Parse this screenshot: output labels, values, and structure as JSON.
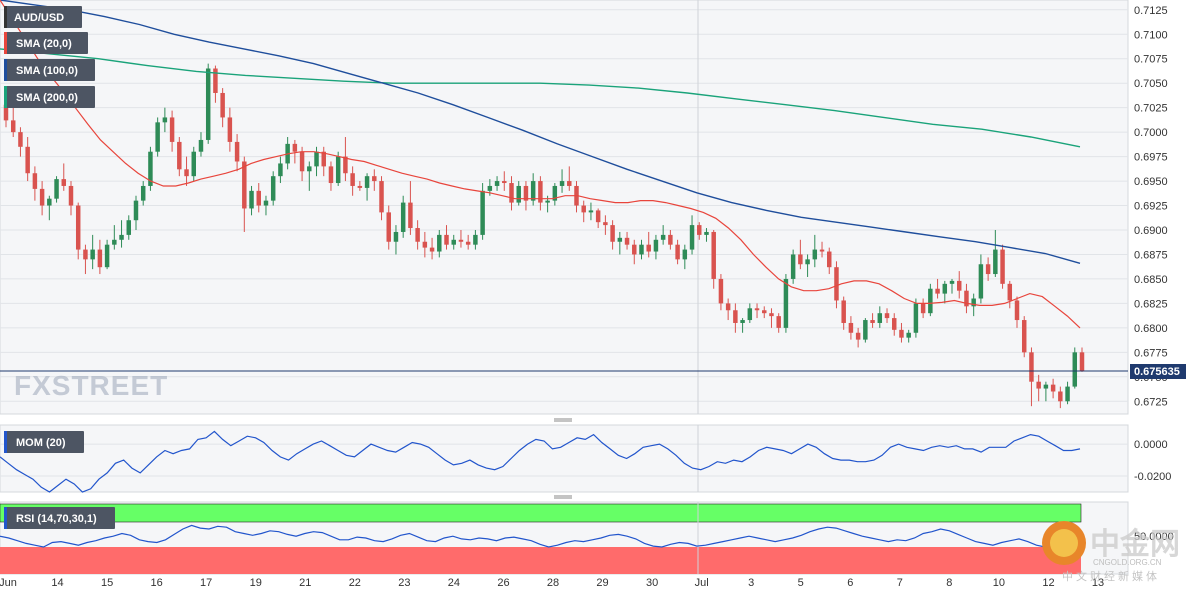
{
  "symbol": "AUD/USD",
  "indicators": {
    "sma20": "SMA (20,0)",
    "sma100": "SMA (100,0)",
    "sma200": "SMA (200,0)",
    "mom": "MOM (20)",
    "rsi": "RSI (14,70,30,1)"
  },
  "watermark": "FXSTREET",
  "logo": {
    "mark": "中金网",
    "domain": "CNGOLD.ORG.CN",
    "tagline": "中文财经新媒体"
  },
  "last_price": "0.675635",
  "colors": {
    "up": "#2e8b57",
    "down": "#d9534f",
    "sma20": "#e8453c",
    "sma100": "#1f4e9c",
    "sma200": "#1aa37a",
    "mom": "#2255cc",
    "rsi": "#2255cc",
    "rsi_overbought": "#66ff66",
    "rsi_oversold": "#ff6b6b"
  },
  "chart_data": {
    "type": "candlestick",
    "price_axis": {
      "ticks": [
        "0.7125",
        "0.7100",
        "0.7075",
        "0.7050",
        "0.7025",
        "0.7000",
        "0.6975",
        "0.6950",
        "0.6925",
        "0.6900",
        "0.6875",
        "0.6850",
        "0.6825",
        "0.6800",
        "0.6775",
        "0.6750",
        "0.6725"
      ],
      "ylim": [
        0.6712,
        0.7135
      ]
    },
    "date_labels": [
      "Jun",
      "14",
      "15",
      "16",
      "17",
      "19",
      "21",
      "22",
      "23",
      "24",
      "26",
      "28",
      "29",
      "30",
      "Jul",
      "3",
      "5",
      "6",
      "7",
      "8",
      "10",
      "12",
      "13"
    ],
    "candles": [
      [
        0.7028,
        0.704,
        0.7005,
        0.7012
      ],
      [
        0.7012,
        0.7025,
        0.6995,
        0.7
      ],
      [
        0.7,
        0.7005,
        0.6975,
        0.6985
      ],
      [
        0.6985,
        0.6995,
        0.695,
        0.6958
      ],
      [
        0.6958,
        0.6965,
        0.693,
        0.6942
      ],
      [
        0.6942,
        0.695,
        0.6915,
        0.6925
      ],
      [
        0.6925,
        0.6935,
        0.691,
        0.6932
      ],
      [
        0.6932,
        0.6955,
        0.6928,
        0.6952
      ],
      [
        0.6952,
        0.6968,
        0.694,
        0.6945
      ],
      [
        0.6945,
        0.695,
        0.6915,
        0.6925
      ],
      [
        0.6925,
        0.6928,
        0.687,
        0.688
      ],
      [
        0.688,
        0.6885,
        0.6855,
        0.687
      ],
      [
        0.687,
        0.6895,
        0.686,
        0.688
      ],
      [
        0.688,
        0.689,
        0.6855,
        0.6862
      ],
      [
        0.6862,
        0.689,
        0.686,
        0.6885
      ],
      [
        0.6885,
        0.6905,
        0.688,
        0.689
      ],
      [
        0.689,
        0.691,
        0.6882,
        0.6895
      ],
      [
        0.6895,
        0.6915,
        0.689,
        0.691
      ],
      [
        0.691,
        0.6935,
        0.69,
        0.693
      ],
      [
        0.693,
        0.695,
        0.6925,
        0.6945
      ],
      [
        0.6945,
        0.6985,
        0.694,
        0.698
      ],
      [
        0.698,
        0.7015,
        0.6975,
        0.701
      ],
      [
        0.701,
        0.7025,
        0.7,
        0.7015
      ],
      [
        0.7015,
        0.7022,
        0.698,
        0.699
      ],
      [
        0.699,
        0.6995,
        0.6955,
        0.6962
      ],
      [
        0.6962,
        0.6975,
        0.6945,
        0.6955
      ],
      [
        0.6955,
        0.6985,
        0.695,
        0.698
      ],
      [
        0.698,
        0.7,
        0.6975,
        0.6992
      ],
      [
        0.6992,
        0.707,
        0.6988,
        0.7065
      ],
      [
        0.7065,
        0.7068,
        0.703,
        0.704
      ],
      [
        0.704,
        0.7045,
        0.7005,
        0.7015
      ],
      [
        0.7015,
        0.7025,
        0.698,
        0.699
      ],
      [
        0.699,
        0.6998,
        0.696,
        0.697
      ],
      [
        0.697,
        0.6975,
        0.6898,
        0.6922
      ],
      [
        0.6922,
        0.6945,
        0.6915,
        0.694
      ],
      [
        0.694,
        0.6948,
        0.6918,
        0.6925
      ],
      [
        0.6925,
        0.6935,
        0.6915,
        0.693
      ],
      [
        0.693,
        0.696,
        0.6925,
        0.6955
      ],
      [
        0.6955,
        0.6975,
        0.6948,
        0.6968
      ],
      [
        0.6968,
        0.6995,
        0.6962,
        0.6988
      ],
      [
        0.6988,
        0.6992,
        0.6968,
        0.698
      ],
      [
        0.698,
        0.6985,
        0.695,
        0.696
      ],
      [
        0.696,
        0.697,
        0.694,
        0.6965
      ],
      [
        0.6965,
        0.6985,
        0.6955,
        0.698
      ],
      [
        0.698,
        0.6985,
        0.6955,
        0.6965
      ],
      [
        0.6965,
        0.697,
        0.694,
        0.6948
      ],
      [
        0.6948,
        0.698,
        0.6945,
        0.6975
      ],
      [
        0.6975,
        0.6995,
        0.695,
        0.6958
      ],
      [
        0.6958,
        0.6965,
        0.6935,
        0.6945
      ],
      [
        0.6945,
        0.695,
        0.694,
        0.6943
      ],
      [
        0.6943,
        0.6958,
        0.693,
        0.6955
      ],
      [
        0.6955,
        0.6962,
        0.694,
        0.695
      ],
      [
        0.695,
        0.6955,
        0.691,
        0.6918
      ],
      [
        0.6918,
        0.6925,
        0.688,
        0.6888
      ],
      [
        0.6888,
        0.6905,
        0.6875,
        0.6898
      ],
      [
        0.6898,
        0.6935,
        0.6892,
        0.6928
      ],
      [
        0.6928,
        0.695,
        0.6895,
        0.6902
      ],
      [
        0.6902,
        0.691,
        0.688,
        0.6888
      ],
      [
        0.6888,
        0.6898,
        0.6872,
        0.6882
      ],
      [
        0.6882,
        0.6892,
        0.687,
        0.6878
      ],
      [
        0.6878,
        0.69,
        0.6872,
        0.6895
      ],
      [
        0.6895,
        0.6905,
        0.688,
        0.6885
      ],
      [
        0.6885,
        0.6895,
        0.688,
        0.689
      ],
      [
        0.689,
        0.69,
        0.6882,
        0.6888
      ],
      [
        0.6888,
        0.6895,
        0.688,
        0.6885
      ],
      [
        0.6885,
        0.69,
        0.688,
        0.6895
      ],
      [
        0.6895,
        0.6948,
        0.689,
        0.694
      ],
      [
        0.694,
        0.6952,
        0.6935,
        0.6945
      ],
      [
        0.6945,
        0.6955,
        0.694,
        0.695
      ],
      [
        0.695,
        0.696,
        0.694,
        0.6948
      ],
      [
        0.6948,
        0.6955,
        0.692,
        0.6928
      ],
      [
        0.6928,
        0.695,
        0.6925,
        0.6945
      ],
      [
        0.6945,
        0.695,
        0.692,
        0.693
      ],
      [
        0.693,
        0.6958,
        0.6925,
        0.695
      ],
      [
        0.695,
        0.6955,
        0.692,
        0.6928
      ],
      [
        0.6928,
        0.6935,
        0.6918,
        0.693
      ],
      [
        0.693,
        0.6948,
        0.6925,
        0.6945
      ],
      [
        0.6945,
        0.6962,
        0.6938,
        0.695
      ],
      [
        0.695,
        0.6965,
        0.694,
        0.6945
      ],
      [
        0.6945,
        0.695,
        0.6918,
        0.6925
      ],
      [
        0.6925,
        0.693,
        0.6908,
        0.6918
      ],
      [
        0.6918,
        0.6928,
        0.691,
        0.692
      ],
      [
        0.692,
        0.6922,
        0.6902,
        0.6908
      ],
      [
        0.6908,
        0.6915,
        0.6895,
        0.6905
      ],
      [
        0.6905,
        0.691,
        0.688,
        0.6888
      ],
      [
        0.6888,
        0.6898,
        0.6875,
        0.6892
      ],
      [
        0.6892,
        0.6898,
        0.688,
        0.6885
      ],
      [
        0.6885,
        0.689,
        0.6865,
        0.6875
      ],
      [
        0.6875,
        0.689,
        0.687,
        0.6885
      ],
      [
        0.6885,
        0.6898,
        0.6872,
        0.6878
      ],
      [
        0.6878,
        0.6895,
        0.687,
        0.689
      ],
      [
        0.689,
        0.6905,
        0.6885,
        0.6895
      ],
      [
        0.6895,
        0.69,
        0.688,
        0.6885
      ],
      [
        0.6885,
        0.689,
        0.6865,
        0.687
      ],
      [
        0.687,
        0.6885,
        0.686,
        0.688
      ],
      [
        0.688,
        0.6915,
        0.6875,
        0.6905
      ],
      [
        0.6905,
        0.6908,
        0.689,
        0.6895
      ],
      [
        0.6895,
        0.6902,
        0.6888,
        0.6898
      ],
      [
        0.6898,
        0.69,
        0.684,
        0.685
      ],
      [
        0.685,
        0.6855,
        0.6818,
        0.6825
      ],
      [
        0.6825,
        0.683,
        0.6808,
        0.6818
      ],
      [
        0.6818,
        0.6825,
        0.6795,
        0.6805
      ],
      [
        0.6805,
        0.681,
        0.6795,
        0.6808
      ],
      [
        0.6808,
        0.6825,
        0.6805,
        0.682
      ],
      [
        0.682,
        0.6825,
        0.681,
        0.6818
      ],
      [
        0.6818,
        0.6822,
        0.681,
        0.6815
      ],
      [
        0.6815,
        0.682,
        0.68,
        0.6812
      ],
      [
        0.6812,
        0.6815,
        0.6795,
        0.68
      ],
      [
        0.68,
        0.6855,
        0.6795,
        0.685
      ],
      [
        0.685,
        0.688,
        0.6845,
        0.6875
      ],
      [
        0.6875,
        0.689,
        0.686,
        0.6865
      ],
      [
        0.6865,
        0.6875,
        0.6852,
        0.687
      ],
      [
        0.687,
        0.6895,
        0.6862,
        0.688
      ],
      [
        0.688,
        0.6888,
        0.6872,
        0.6878
      ],
      [
        0.6878,
        0.6882,
        0.6855,
        0.6862
      ],
      [
        0.6862,
        0.6868,
        0.682,
        0.6828
      ],
      [
        0.6828,
        0.6832,
        0.6798,
        0.6805
      ],
      [
        0.6805,
        0.6812,
        0.6788,
        0.6795
      ],
      [
        0.6795,
        0.68,
        0.678,
        0.6788
      ],
      [
        0.6788,
        0.681,
        0.6785,
        0.6808
      ],
      [
        0.6808,
        0.6815,
        0.68,
        0.6805
      ],
      [
        0.6805,
        0.6822,
        0.68,
        0.6815
      ],
      [
        0.6815,
        0.682,
        0.6805,
        0.681
      ],
      [
        0.681,
        0.6815,
        0.6792,
        0.6798
      ],
      [
        0.6798,
        0.6805,
        0.6785,
        0.679
      ],
      [
        0.679,
        0.6798,
        0.6785,
        0.6795
      ],
      [
        0.6795,
        0.683,
        0.679,
        0.6825
      ],
      [
        0.6825,
        0.683,
        0.681,
        0.6815
      ],
      [
        0.6815,
        0.6845,
        0.6812,
        0.684
      ],
      [
        0.684,
        0.685,
        0.683,
        0.6835
      ],
      [
        0.6835,
        0.6848,
        0.6825,
        0.6845
      ],
      [
        0.6845,
        0.685,
        0.6835,
        0.6848
      ],
      [
        0.6848,
        0.6858,
        0.683,
        0.6838
      ],
      [
        0.6838,
        0.6845,
        0.6815,
        0.6822
      ],
      [
        0.6822,
        0.6835,
        0.6812,
        0.683
      ],
      [
        0.683,
        0.6875,
        0.6825,
        0.6865
      ],
      [
        0.6865,
        0.6872,
        0.6848,
        0.6855
      ],
      [
        0.6855,
        0.69,
        0.6852,
        0.688
      ],
      [
        0.688,
        0.6885,
        0.684,
        0.6845
      ],
      [
        0.6845,
        0.6848,
        0.682,
        0.6828
      ],
      [
        0.6828,
        0.6832,
        0.68,
        0.6808
      ],
      [
        0.6808,
        0.6812,
        0.677,
        0.6775
      ],
      [
        0.6775,
        0.678,
        0.672,
        0.6745
      ],
      [
        0.6745,
        0.6752,
        0.6725,
        0.6738
      ],
      [
        0.6738,
        0.6745,
        0.6725,
        0.6742
      ],
      [
        0.6742,
        0.6748,
        0.6728,
        0.6735
      ],
      [
        0.6735,
        0.674,
        0.6718,
        0.6725
      ],
      [
        0.6725,
        0.6745,
        0.6722,
        0.674
      ],
      [
        0.674,
        0.678,
        0.6738,
        0.6775
      ],
      [
        0.6775,
        0.678,
        0.6755,
        0.6756
      ]
    ],
    "mom_axis": {
      "ticks": [
        "0.0000",
        "-0.0200"
      ],
      "ylim": [
        -0.03,
        0.012
      ]
    },
    "mom_values": [
      -0.008,
      -0.012,
      -0.016,
      -0.019,
      -0.022,
      -0.027,
      -0.03,
      -0.026,
      -0.022,
      -0.025,
      -0.03,
      -0.028,
      -0.022,
      -0.018,
      -0.012,
      -0.01,
      -0.015,
      -0.018,
      -0.013,
      -0.008,
      -0.004,
      -0.006,
      -0.004,
      -0.003,
      0.003,
      0.004,
      0.008,
      0.003,
      -0.001,
      0.002,
      0.005,
      0.004,
      0.001,
      -0.004,
      -0.008,
      -0.01,
      -0.006,
      -0.003,
      0.0,
      0.002,
      -0.001,
      -0.004,
      -0.007,
      -0.008,
      -0.004,
      0.0,
      -0.002,
      -0.004,
      -0.005,
      -0.002,
      0.001,
      0.0,
      -0.002,
      -0.006,
      -0.01,
      -0.013,
      -0.012,
      -0.01,
      -0.013,
      -0.015,
      -0.016,
      -0.014,
      -0.009,
      -0.004,
      0.0,
      0.003,
      0.002,
      -0.003,
      -0.002,
      0.001,
      0.004,
      0.003,
      0.006,
      0.001,
      -0.003,
      -0.007,
      -0.009,
      -0.006,
      -0.002,
      -0.001,
      0.0,
      -0.003,
      -0.007,
      -0.012,
      -0.015,
      -0.016,
      -0.014,
      -0.011,
      -0.012,
      -0.01,
      -0.011,
      -0.008,
      -0.004,
      -0.002,
      -0.003,
      -0.004,
      -0.006,
      -0.003,
      0.0,
      -0.002,
      -0.006,
      -0.009,
      -0.01,
      -0.01,
      -0.011,
      -0.011,
      -0.01,
      -0.007,
      -0.002,
      0.0,
      -0.002,
      -0.003,
      -0.004,
      -0.002,
      -0.001,
      -0.002,
      -0.001,
      -0.003,
      -0.003,
      -0.005,
      -0.002,
      -0.002,
      -0.002,
      0.002,
      0.004,
      0.006,
      0.005,
      0.002,
      -0.001,
      -0.004,
      -0.004,
      -0.003
    ],
    "rsi_axis": {
      "ticks": [
        "50.0000"
      ],
      "ylim": [
        10,
        90
      ]
    },
    "rsi_values": [
      52,
      50,
      47,
      44,
      42,
      40,
      45,
      46,
      44,
      42,
      45,
      47,
      50,
      52,
      55,
      53,
      48,
      46,
      45,
      48,
      54,
      60,
      64,
      61,
      60,
      63,
      62,
      57,
      55,
      53,
      55,
      58,
      57,
      54,
      52,
      55,
      57,
      56,
      52,
      48,
      48,
      51,
      50,
      47,
      46,
      49,
      53,
      55,
      51,
      47,
      46,
      50,
      52,
      49,
      48,
      50,
      49,
      47,
      50,
      51,
      49,
      47,
      43,
      40,
      42,
      45,
      47,
      46,
      48,
      50,
      53,
      54,
      52,
      49,
      44,
      41,
      40,
      43,
      45,
      44,
      41,
      42,
      44,
      46,
      48,
      50,
      52,
      50,
      48,
      46,
      48,
      50,
      53,
      57,
      60,
      62,
      61,
      58,
      55,
      52,
      50,
      48,
      46,
      48,
      47,
      50,
      55,
      57,
      60,
      58,
      54,
      50,
      46,
      44,
      42,
      45,
      47,
      49,
      46,
      42,
      40,
      38,
      37,
      44,
      47
    ],
    "sma20_values": [
      0.7135,
      0.7115,
      0.7095,
      0.7075,
      0.7058,
      0.7042,
      0.7025,
      0.7008,
      0.6992,
      0.698,
      0.6968,
      0.6958,
      0.695,
      0.6945,
      0.6945,
      0.6948,
      0.6952,
      0.6955,
      0.6958,
      0.6962,
      0.6968,
      0.6972,
      0.6975,
      0.6978,
      0.698,
      0.698,
      0.6978,
      0.6975,
      0.6972,
      0.697,
      0.6966,
      0.6962,
      0.6958,
      0.6955,
      0.6952,
      0.6948,
      0.6945,
      0.6942,
      0.694,
      0.6938,
      0.6935,
      0.6932,
      0.6932,
      0.6932,
      0.6932,
      0.6935,
      0.6935,
      0.6932,
      0.693,
      0.6928,
      0.6928,
      0.693,
      0.693,
      0.6928,
      0.6925,
      0.6922,
      0.6918,
      0.6912,
      0.6902,
      0.689,
      0.6875,
      0.6862,
      0.685,
      0.6842,
      0.6838,
      0.6838,
      0.684,
      0.6845,
      0.6848,
      0.6848,
      0.6845,
      0.6838,
      0.683,
      0.6825,
      0.6825,
      0.6826,
      0.6828,
      0.6825,
      0.6823,
      0.6823,
      0.6825,
      0.683,
      0.6835,
      0.6832,
      0.6822,
      0.6812,
      0.68
    ],
    "sma100_values": [
      0.7135,
      0.713,
      0.7125,
      0.7118,
      0.711,
      0.71,
      0.7092,
      0.7085,
      0.7078,
      0.707,
      0.706,
      0.705,
      0.704,
      0.7028,
      0.7015,
      0.7002,
      0.6988,
      0.6975,
      0.6962,
      0.695,
      0.6938,
      0.6928,
      0.692,
      0.6913,
      0.6908,
      0.6903,
      0.6898,
      0.6893,
      0.6888,
      0.6882,
      0.6876,
      0.6866
    ],
    "sma200_values": [
      0.7085,
      0.708,
      0.7075,
      0.7068,
      0.7062,
      0.7058,
      0.7055,
      0.7052,
      0.705,
      0.705,
      0.705,
      0.705,
      0.7048,
      0.7045,
      0.704,
      0.7034,
      0.7028,
      0.7022,
      0.7015,
      0.7008,
      0.7003,
      0.6995,
      0.6985
    ]
  }
}
